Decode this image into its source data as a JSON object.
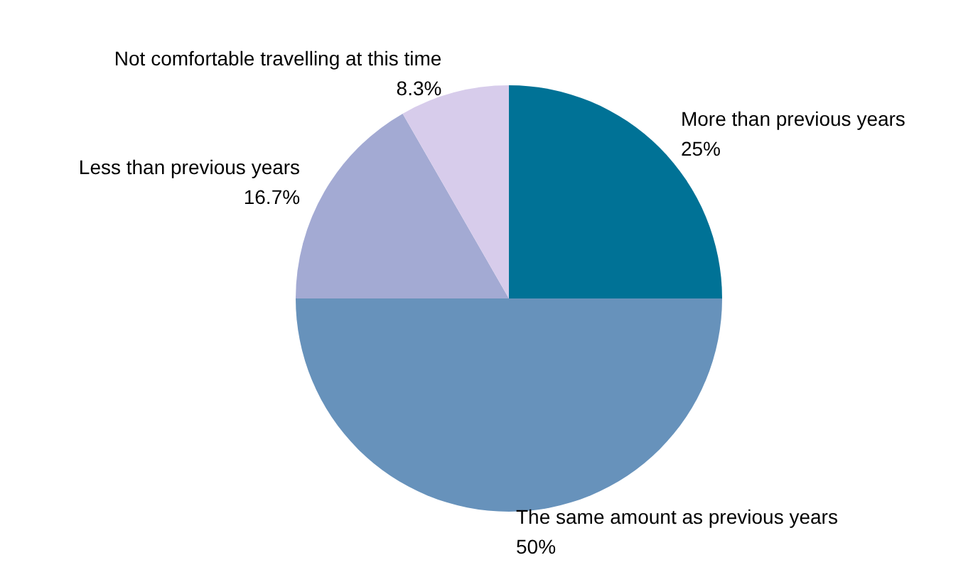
{
  "chart_data": {
    "type": "pie",
    "categories": [
      "More than previous years",
      "The same amount as previous years",
      "Less than previous years",
      "Not comfortable travelling at this time"
    ],
    "values": [
      25,
      50,
      16.7,
      8.3
    ],
    "colors": [
      "#007296",
      "#6792bb",
      "#a3aad3",
      "#d7cceb"
    ],
    "value_labels": [
      "25%",
      "50%",
      "16.7%",
      "8.3%"
    ],
    "legend": false
  }
}
